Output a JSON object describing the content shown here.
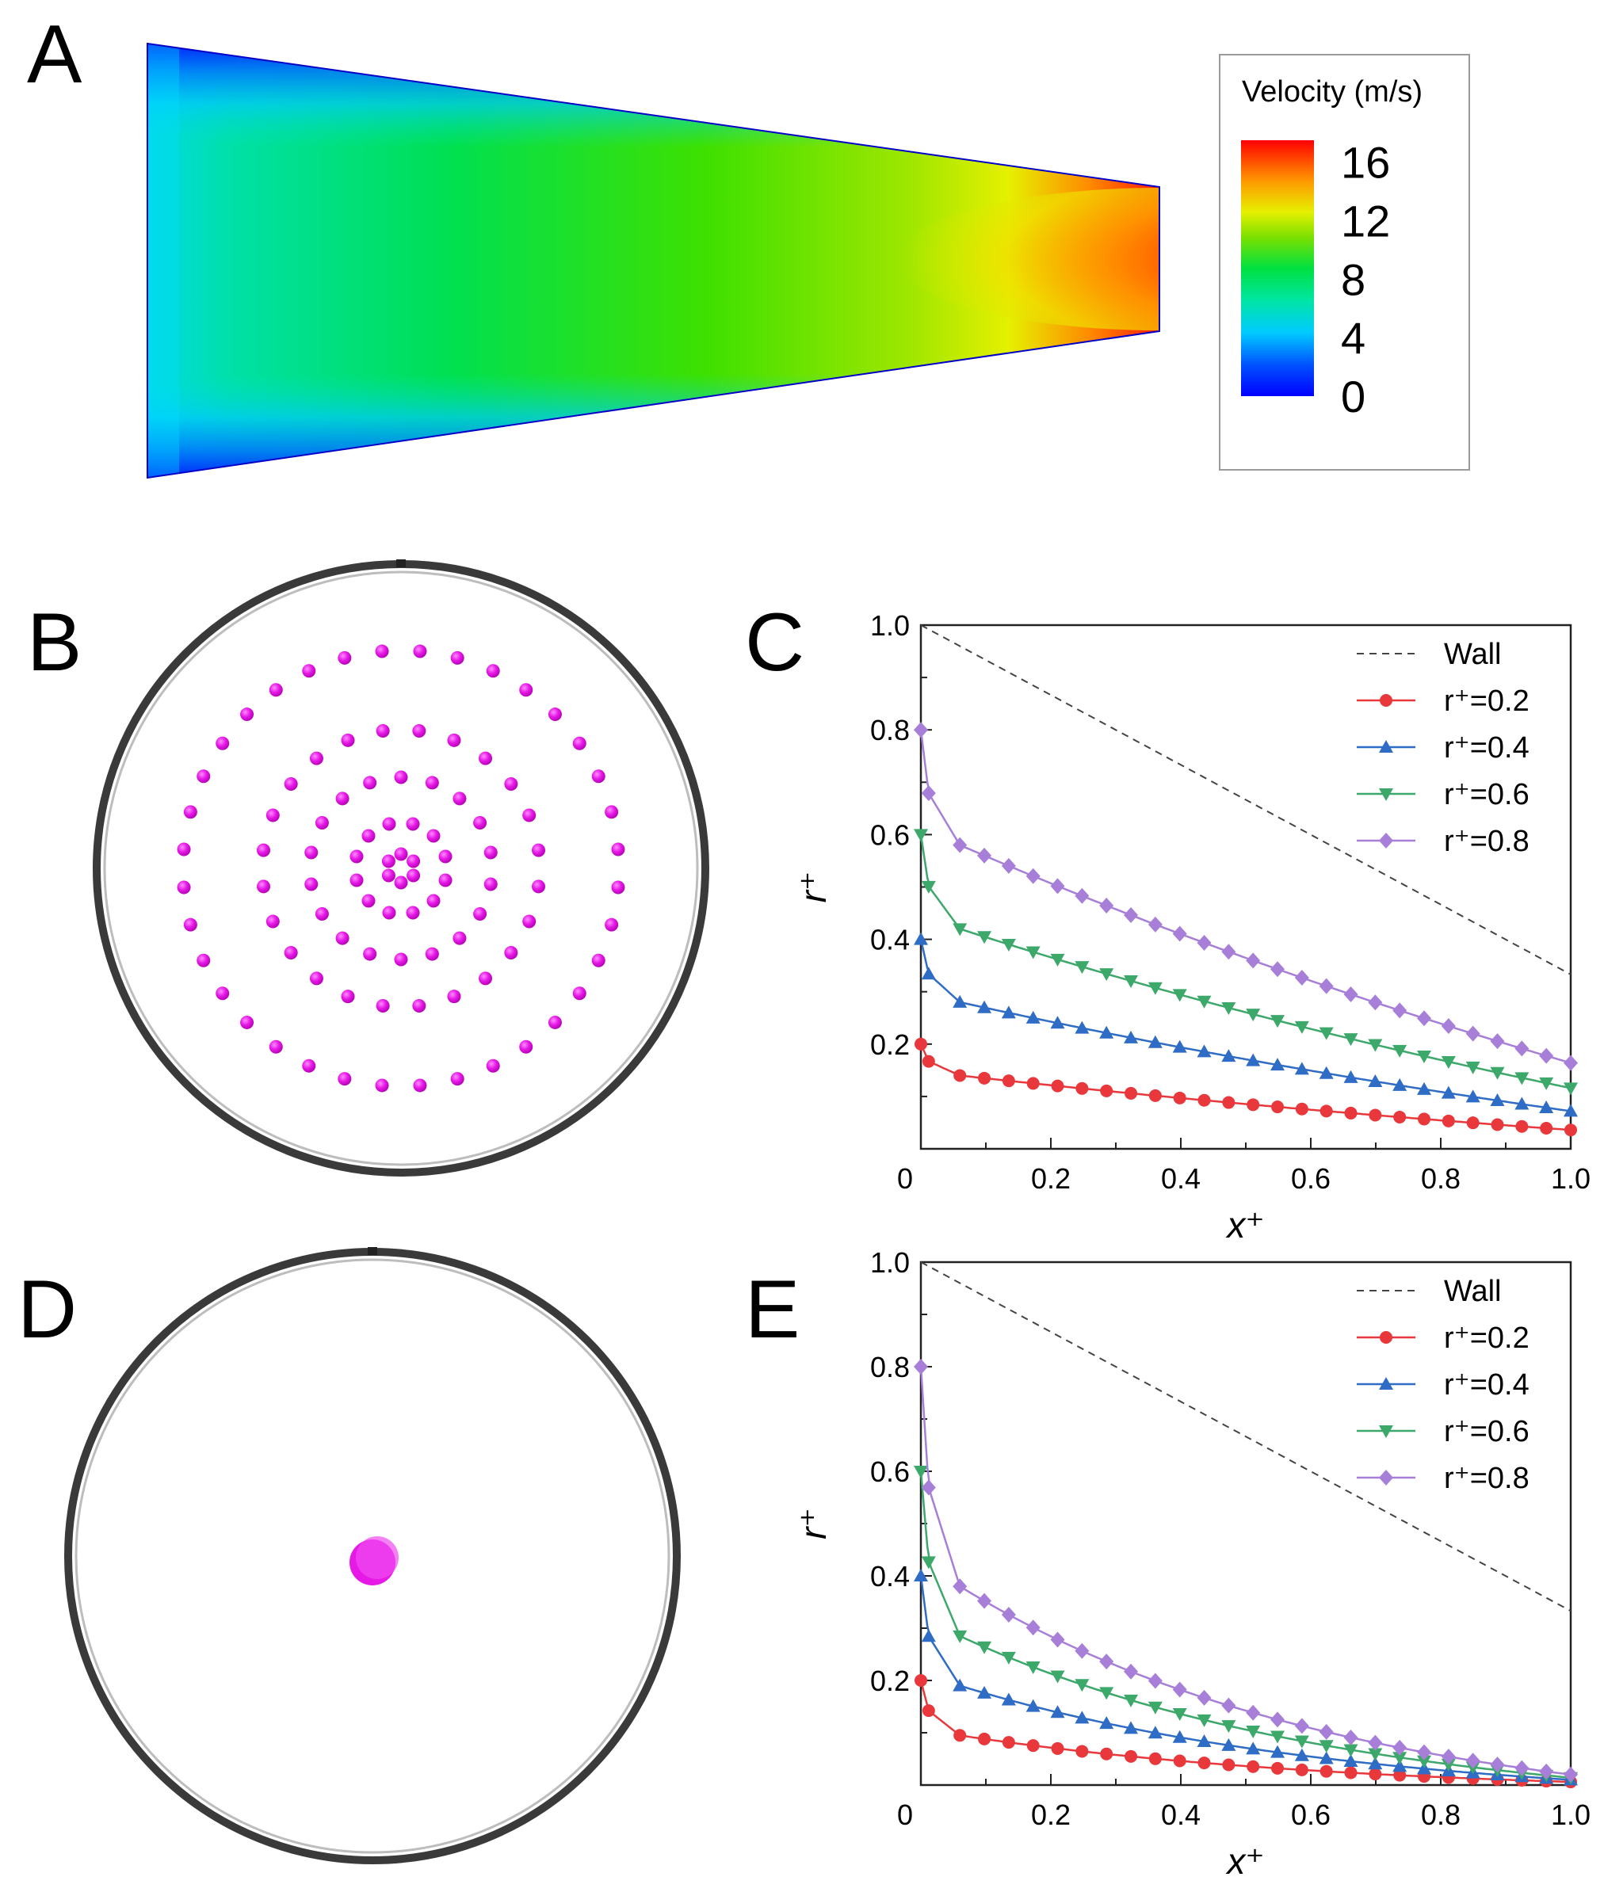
{
  "panel_labels": [
    "A",
    "B",
    "C",
    "D",
    "E"
  ],
  "colors": {
    "r02": "#e8383c",
    "r04": "#2f6cc5",
    "r06": "#3ca86a",
    "r08": "#a77fd8",
    "wall": "#444444",
    "particle": "#e619e6",
    "pipe": "#3a3a3a"
  },
  "colorbar": {
    "title": "Velocity (m/s)",
    "ticks": [
      "16",
      "12",
      "8",
      "4",
      "0"
    ],
    "tick_values": [
      16,
      12,
      8,
      4,
      0
    ],
    "range": [
      0,
      17.5
    ],
    "colormap": "rainbow"
  },
  "chart_data": [
    {
      "id": "C",
      "type": "line",
      "xlabel": "x⁺",
      "ylabel": "r⁺",
      "xlim": [
        0,
        1
      ],
      "ylim": [
        0,
        1
      ],
      "xticks": [
        "0",
        "0.2",
        "0.4",
        "0.6",
        "0.8",
        "1.0"
      ],
      "yticks": [
        "0.2",
        "0.4",
        "0.6",
        "0.8",
        "1.0"
      ],
      "legend_position": "top-right",
      "legend": [
        "Wall",
        "r⁺=0.2",
        "r⁺=0.4",
        "r⁺=0.6",
        "r⁺=0.8"
      ],
      "wall": {
        "x": [
          0,
          1
        ],
        "y": [
          1.0,
          0.333
        ]
      },
      "series": [
        {
          "name": "r⁺=0.2",
          "start": 0.2,
          "knee": 0.14,
          "end": 0.036,
          "knee_x": 0.06,
          "curve": 0.45
        },
        {
          "name": "r⁺=0.4",
          "start": 0.4,
          "knee": 0.28,
          "end": 0.072,
          "knee_x": 0.06,
          "curve": 0.45
        },
        {
          "name": "r⁺=0.6",
          "start": 0.6,
          "knee": 0.42,
          "end": 0.116,
          "knee_x": 0.06,
          "curve": 0.45
        },
        {
          "name": "r⁺=0.8",
          "start": 0.8,
          "knee": 0.58,
          "end": 0.164,
          "knee_x": 0.06,
          "curve": 0.4
        }
      ]
    },
    {
      "id": "E",
      "type": "line",
      "xlabel": "x⁺",
      "ylabel": "r⁺",
      "xlim": [
        0,
        1
      ],
      "ylim": [
        0,
        1
      ],
      "xticks": [
        "0",
        "0.2",
        "0.4",
        "0.6",
        "0.8",
        "1.0"
      ],
      "yticks": [
        "0.2",
        "0.4",
        "0.6",
        "0.8",
        "1.0"
      ],
      "legend_position": "top-right",
      "legend": [
        "Wall",
        "r⁺=0.2",
        "r⁺=0.4",
        "r⁺=0.6",
        "r⁺=0.8"
      ],
      "wall": {
        "x": [
          0,
          1
        ],
        "y": [
          1.0,
          0.333
        ]
      },
      "series": [
        {
          "name": "r⁺=0.2",
          "start": 0.2,
          "knee": 0.095,
          "end": 0.006,
          "knee_x": 0.06,
          "curve": 1.6
        },
        {
          "name": "r⁺=0.4",
          "start": 0.4,
          "knee": 0.19,
          "end": 0.01,
          "knee_x": 0.06,
          "curve": 1.6
        },
        {
          "name": "r⁺=0.6",
          "start": 0.6,
          "knee": 0.285,
          "end": 0.014,
          "knee_x": 0.06,
          "curve": 1.6
        },
        {
          "name": "r⁺=0.8",
          "start": 0.8,
          "knee": 0.38,
          "end": 0.02,
          "knee_x": 0.06,
          "curve": 1.6
        }
      ]
    }
  ]
}
